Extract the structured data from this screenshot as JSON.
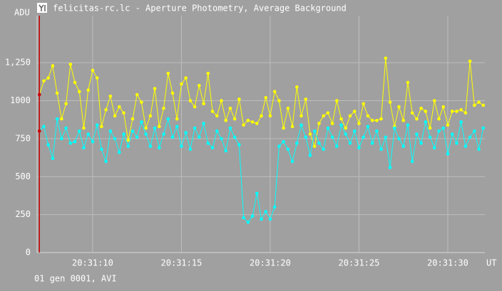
{
  "chart_data": {
    "type": "line",
    "title": "felicitas-rc.lc - Aperture Photometry, Average Background",
    "y_label": "ADU",
    "x_label": "UT",
    "footer": "01 gen 0001, AVI",
    "grid": true,
    "xlim": [
      6.87,
      32.09
    ],
    "ylim": [
      0,
      1560
    ],
    "yticks": [
      0,
      250,
      500,
      750,
      1000,
      {
        "value": 1250,
        "label": "1,250"
      }
    ],
    "xticks": [
      {
        "value": 10,
        "label": "20:31:10"
      },
      {
        "value": 15,
        "label": "20:31:15"
      },
      {
        "value": 20,
        "label": "20:31:20"
      },
      {
        "value": 25,
        "label": "20:31:25"
      },
      {
        "value": 30,
        "label": "20:31:30"
      }
    ],
    "cursor": {
      "x": 7.0,
      "color": "#cc0000"
    },
    "x": [
      7.0,
      7.25,
      7.5,
      7.75,
      8.0,
      8.25,
      8.5,
      8.75,
      9.0,
      9.25,
      9.5,
      9.75,
      10.0,
      10.25,
      10.5,
      10.75,
      11.0,
      11.25,
      11.5,
      11.75,
      12.0,
      12.25,
      12.5,
      12.75,
      13.0,
      13.25,
      13.5,
      13.75,
      14.0,
      14.25,
      14.5,
      14.75,
      15.0,
      15.25,
      15.5,
      15.75,
      16.0,
      16.25,
      16.5,
      16.75,
      17.0,
      17.25,
      17.5,
      17.75,
      18.0,
      18.25,
      18.5,
      18.75,
      19.0,
      19.25,
      19.5,
      19.75,
      20.0,
      20.25,
      20.5,
      20.75,
      21.0,
      21.25,
      21.5,
      21.75,
      22.0,
      22.25,
      22.5,
      22.75,
      23.0,
      23.25,
      23.5,
      23.75,
      24.0,
      24.25,
      24.5,
      24.75,
      25.0,
      25.25,
      25.5,
      25.75,
      26.0,
      26.25,
      26.5,
      26.75,
      27.0,
      27.25,
      27.5,
      27.75,
      28.0,
      28.25,
      28.5,
      28.75,
      29.0,
      29.25,
      29.5,
      29.75,
      30.0,
      30.25,
      30.5,
      30.75,
      31.0,
      31.25,
      31.5,
      31.75,
      32.0
    ],
    "series": [
      {
        "color": "#ffff00",
        "values": [
          1040,
          1130,
          1150,
          1230,
          1050,
          880,
          980,
          1240,
          1120,
          1060,
          820,
          1070,
          1200,
          1150,
          830,
          940,
          1030,
          900,
          960,
          920,
          740,
          880,
          1040,
          990,
          820,
          900,
          1080,
          830,
          950,
          1180,
          1050,
          880,
          1110,
          1150,
          1000,
          960,
          1100,
          980,
          1180,
          930,
          900,
          1000,
          870,
          950,
          880,
          1010,
          840,
          870,
          860,
          850,
          900,
          1020,
          900,
          1060,
          1000,
          820,
          950,
          830,
          1090,
          900,
          1010,
          780,
          700,
          850,
          900,
          920,
          850,
          1000,
          880,
          820,
          900,
          930,
          850,
          980,
          900,
          870,
          870,
          880,
          1280,
          990,
          830,
          960,
          870,
          1120,
          920,
          880,
          950,
          930,
          820,
          1000,
          880,
          960,
          840,
          930,
          930,
          940,
          920,
          1260,
          970,
          990,
          970
        ]
      },
      {
        "color": "#00ffff",
        "values": [
          800,
          830,
          710,
          620,
          880,
          750,
          820,
          720,
          730,
          800,
          690,
          780,
          730,
          840,
          680,
          600,
          800,
          750,
          660,
          780,
          700,
          800,
          760,
          860,
          780,
          700,
          820,
          690,
          780,
          880,
          760,
          830,
          700,
          790,
          680,
          820,
          760,
          850,
          720,
          690,
          800,
          750,
          670,
          820,
          760,
          710,
          230,
          200,
          240,
          390,
          220,
          270,
          220,
          300,
          700,
          730,
          680,
          600,
          720,
          840,
          760,
          640,
          800,
          720,
          680,
          820,
          760,
          700,
          840,
          780,
          720,
          800,
          690,
          760,
          830,
          720,
          800,
          680,
          760,
          560,
          820,
          750,
          700,
          840,
          600,
          780,
          720,
          860,
          760,
          690,
          800,
          820,
          650,
          780,
          720,
          860,
          700,
          760,
          800,
          680,
          820
        ]
      }
    ]
  }
}
